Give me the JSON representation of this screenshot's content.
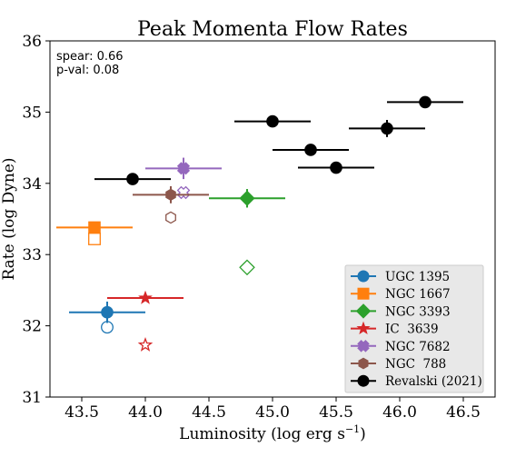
{
  "chart_data": {
    "type": "scatter",
    "title": "Peak Momenta Flow Rates",
    "xlabel": "Luminosity (log erg s",
    "xlabel_sup": "−1",
    "xlabel_close": ")",
    "ylabel": "Rate (log Dyne)",
    "xlim": [
      43.25,
      46.75
    ],
    "ylim": [
      31,
      36
    ],
    "xticks": [
      "43.5",
      "44.0",
      "44.5",
      "45.0",
      "45.5",
      "46.0",
      "46.5"
    ],
    "yticks": [
      "31",
      "32",
      "33",
      "34",
      "35",
      "36"
    ],
    "annotations": [
      "spear: 0.66",
      "p-val: 0.08"
    ],
    "legend_position": "lower-right",
    "series": [
      {
        "name": "UGC 1395",
        "color": "#1f77b4",
        "marker": "circle",
        "filled": [
          {
            "x": 43.7,
            "y": 32.19,
            "xerr": 0.3,
            "yerr": 0.15
          }
        ],
        "open": [
          {
            "x": 43.7,
            "y": 31.98
          }
        ]
      },
      {
        "name": "NGC 1667",
        "color": "#ff7f0e",
        "marker": "square",
        "filled": [
          {
            "x": 43.6,
            "y": 33.38,
            "xerr": 0.3,
            "yerr": 0.06
          }
        ],
        "open": [
          {
            "x": 43.6,
            "y": 33.22
          }
        ]
      },
      {
        "name": "NGC 3393",
        "color": "#2ca02c",
        "marker": "diamond",
        "filled": [
          {
            "x": 44.8,
            "y": 33.79,
            "xerr": 0.3,
            "yerr": 0.13
          }
        ],
        "open": [
          {
            "x": 44.8,
            "y": 32.82
          }
        ]
      },
      {
        "name": "IC  3639",
        "color": "#d62728",
        "marker": "star",
        "filled": [
          {
            "x": 44.0,
            "y": 32.39,
            "xerr_left": 0.3,
            "xerr_right": 0.3,
            "yerr": 0.0
          }
        ],
        "open": [
          {
            "x": 44.0,
            "y": 31.73
          }
        ]
      },
      {
        "name": "NGC 7682",
        "color": "#9467bd",
        "marker": "x",
        "filled": [
          {
            "x": 44.3,
            "y": 34.21,
            "xerr": 0.3,
            "yerr": 0.15
          }
        ],
        "open": [
          {
            "x": 44.3,
            "y": 33.87
          }
        ]
      },
      {
        "name": "NGC  788",
        "color": "#8c564b",
        "marker": "hexagon",
        "filled": [
          {
            "x": 44.2,
            "y": 33.84,
            "xerr": 0.3,
            "yerr": 0.12
          }
        ],
        "open": [
          {
            "x": 44.2,
            "y": 33.52
          }
        ]
      },
      {
        "name": "Revalski (2021)",
        "color": "#000000",
        "marker": "circle",
        "filled": [
          {
            "x": 43.9,
            "y": 34.06,
            "xerr": 0.3,
            "yerr": 0.06
          },
          {
            "x": 45.0,
            "y": 34.87,
            "xerr": 0.3,
            "yerr": 0.06
          },
          {
            "x": 45.3,
            "y": 34.47,
            "xerr": 0.3,
            "yerr": 0.06
          },
          {
            "x": 45.5,
            "y": 34.22,
            "xerr": 0.3,
            "yerr": 0.06
          },
          {
            "x": 45.9,
            "y": 34.77,
            "xerr": 0.3,
            "yerr": 0.12
          },
          {
            "x": 46.2,
            "y": 35.14,
            "xerr": 0.3,
            "yerr": 0.06
          }
        ],
        "open": []
      }
    ]
  }
}
